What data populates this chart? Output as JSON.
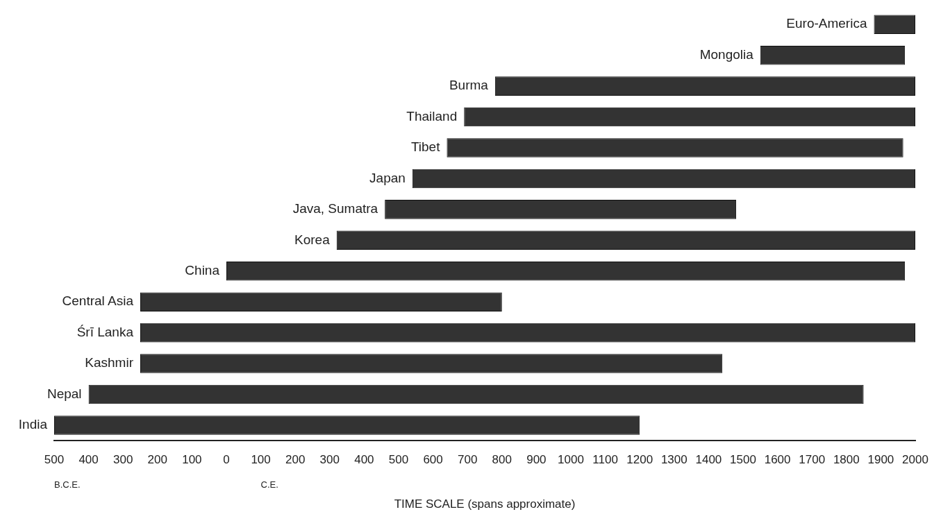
{
  "chart_data": {
    "type": "bar",
    "orientation": "horizontal",
    "xlabel": "TIME SCALE (spans approximate)",
    "categories": [
      "Euro-America",
      "Mongolia",
      "Burma",
      "Thailand",
      "Tibet",
      "Japan",
      "Java, Sumatra",
      "Korea",
      "China",
      "Central Asia",
      "Śrī Lanka",
      "Kashmir",
      "Nepal",
      "India"
    ],
    "base": [
      1880,
      1550,
      780,
      690,
      640,
      540,
      460,
      320,
      0,
      -250,
      -250,
      -250,
      -400,
      -500
    ],
    "values": [
      120,
      420,
      1220,
      1310,
      1325,
      1460,
      1020,
      1680,
      1970,
      1050,
      2250,
      1690,
      2250,
      1700
    ],
    "color": "#333333",
    "xlim": [
      -500,
      2000
    ],
    "xticks": [
      {
        "value": -500,
        "label": "500"
      },
      {
        "value": -400,
        "label": "400"
      },
      {
        "value": -300,
        "label": "300"
      },
      {
        "value": -200,
        "label": "200"
      },
      {
        "value": -100,
        "label": "100"
      },
      0,
      100,
      200,
      300,
      400,
      500,
      600,
      700,
      800,
      900,
      1000,
      1100,
      1200,
      1300,
      1400,
      1500,
      1600,
      1700,
      1800,
      1900,
      2000
    ],
    "annotations": [
      "B.C.E.",
      "C.E."
    ],
    "grid": false,
    "legend": false
  }
}
